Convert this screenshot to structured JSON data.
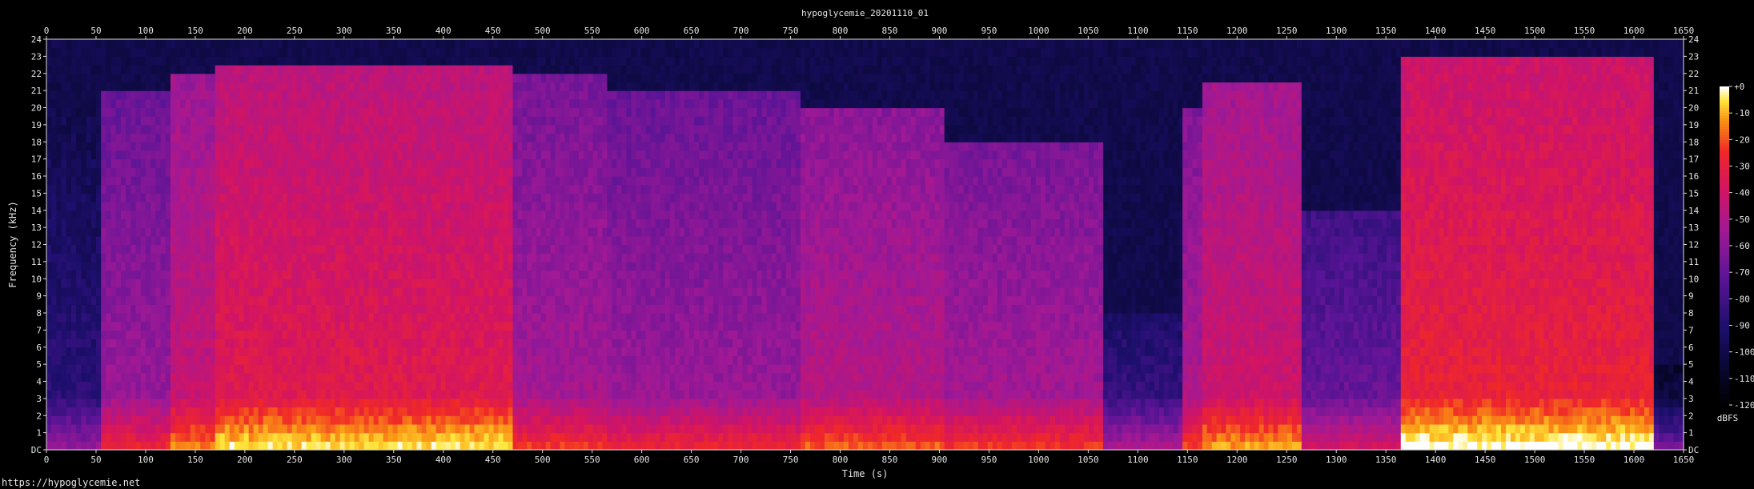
{
  "chart_data": {
    "type": "heatmap",
    "title": "hypoglycemie_20201110_01",
    "xlabel": "Time (s)",
    "ylabel": "Frequency (kHz)",
    "x_ticks": [
      0,
      50,
      100,
      150,
      200,
      250,
      300,
      350,
      400,
      450,
      500,
      550,
      600,
      650,
      700,
      750,
      800,
      850,
      900,
      950,
      1000,
      1050,
      1100,
      1150,
      1200,
      1250,
      1300,
      1350,
      1400,
      1450,
      1500,
      1550,
      1600,
      1650
    ],
    "y_ticks": [
      "DC",
      "1",
      "2",
      "3",
      "4",
      "5",
      "6",
      "7",
      "8",
      "9",
      "10",
      "11",
      "12",
      "13",
      "14",
      "15",
      "16",
      "17",
      "18",
      "19",
      "20",
      "21",
      "22",
      "23",
      "24"
    ],
    "xlim": [
      0,
      1650
    ],
    "ylim": [
      0,
      24
    ],
    "colorbar": {
      "label": "dBFS",
      "ticks": [
        "+0",
        "-10",
        "-20",
        "-30",
        "-40",
        "-50",
        "-60",
        "-70",
        "-80",
        "-90",
        "-100",
        "-110",
        "-120"
      ],
      "range": [
        -120,
        0
      ]
    },
    "segments": [
      {
        "start": 0,
        "end": 55,
        "level": 0.3,
        "cutoff": 20
      },
      {
        "start": 55,
        "end": 125,
        "level": 0.55,
        "cutoff": 21
      },
      {
        "start": 125,
        "end": 170,
        "level": 0.66,
        "cutoff": 22
      },
      {
        "start": 170,
        "end": 470,
        "level": 0.74,
        "cutoff": 22.5
      },
      {
        "start": 470,
        "end": 565,
        "level": 0.58,
        "cutoff": 22
      },
      {
        "start": 565,
        "end": 760,
        "level": 0.55,
        "cutoff": 21
      },
      {
        "start": 760,
        "end": 905,
        "level": 0.62,
        "cutoff": 20
      },
      {
        "start": 905,
        "end": 1065,
        "level": 0.58,
        "cutoff": 18
      },
      {
        "start": 1065,
        "end": 1145,
        "level": 0.35,
        "cutoff": 8
      },
      {
        "start": 1145,
        "end": 1165,
        "level": 0.6,
        "cutoff": 20
      },
      {
        "start": 1165,
        "end": 1265,
        "level": 0.68,
        "cutoff": 21.5
      },
      {
        "start": 1265,
        "end": 1365,
        "level": 0.45,
        "cutoff": 14
      },
      {
        "start": 1365,
        "end": 1620,
        "level": 0.78,
        "cutoff": 23
      },
      {
        "start": 1620,
        "end": 1650,
        "level": 0.22,
        "cutoff": 5
      }
    ],
    "grid": false
  },
  "footer": {
    "url": "https://hypoglycemie.net"
  },
  "colors": {
    "background": "#000000",
    "text": "#e6e6e6"
  }
}
